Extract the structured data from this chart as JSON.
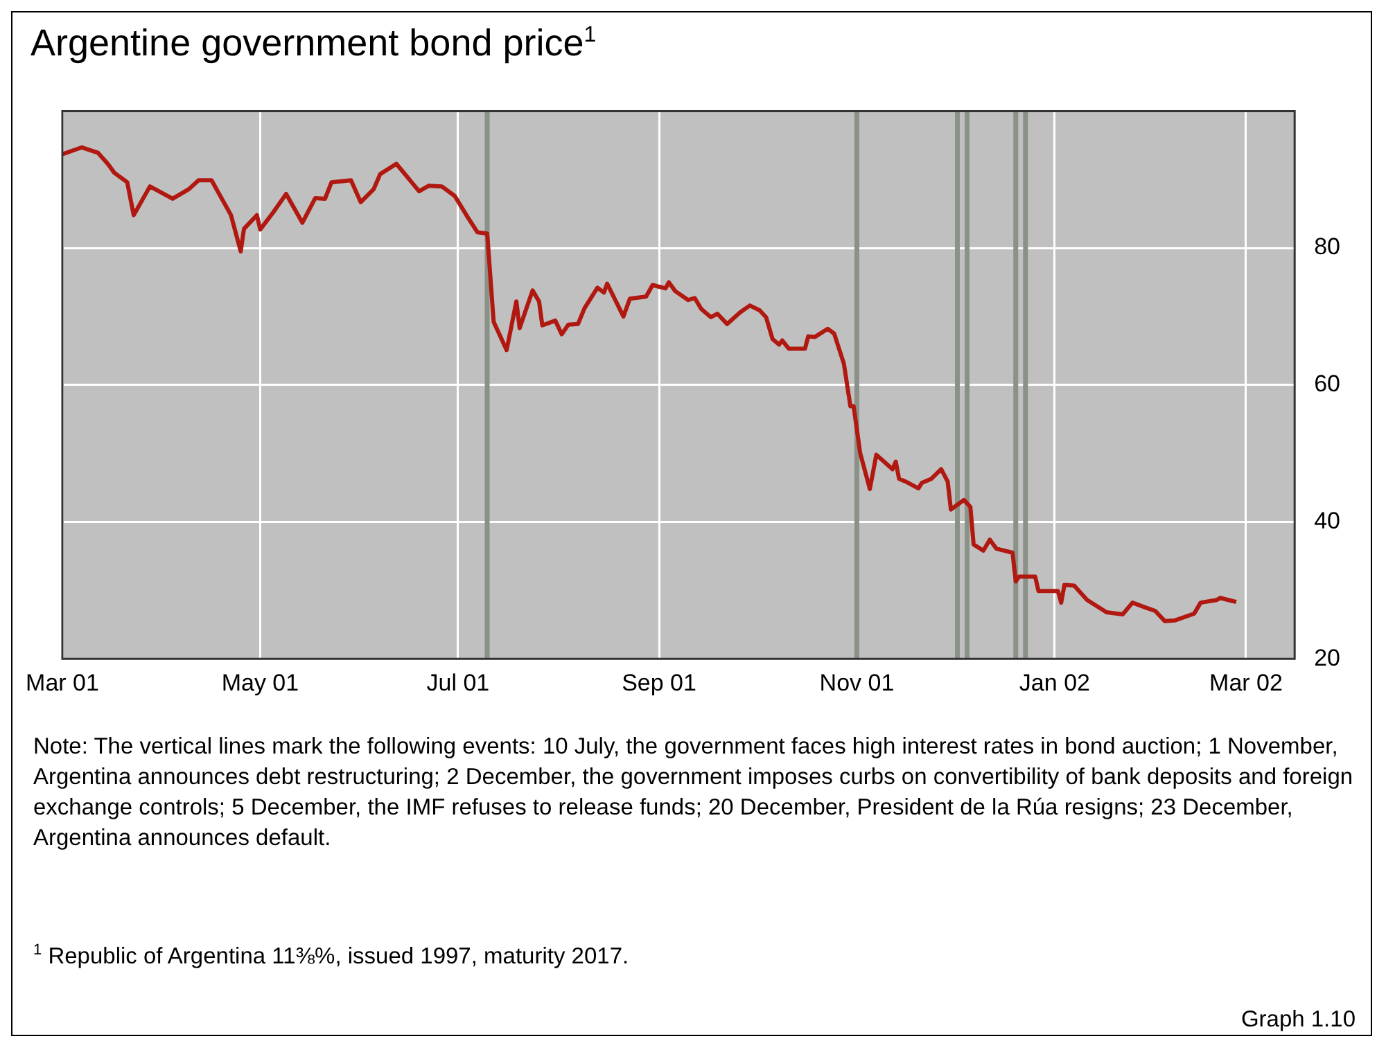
{
  "chart_data": {
    "type": "line",
    "title": "Argentine government bond price$^{1}$",
    "x": [
      "2001-03-01",
      "2001-03-07",
      "2001-03-12",
      "2001-03-15",
      "2001-03-17",
      "2001-03-21",
      "2001-03-23",
      "2001-03-28",
      "2001-04-04",
      "2001-04-09",
      "2001-04-12",
      "2001-04-16",
      "2001-04-22",
      "2001-04-25",
      "2001-04-26",
      "2001-04-30",
      "2001-05-01",
      "2001-05-05",
      "2001-05-09",
      "2001-05-14",
      "2001-05-18",
      "2001-05-21",
      "2001-05-23",
      "2001-05-29",
      "2001-06-01",
      "2001-06-05",
      "2001-06-07",
      "2001-06-12",
      "2001-06-19",
      "2001-06-22",
      "2001-06-26",
      "2001-06-30",
      "2001-07-04",
      "2001-07-07",
      "2001-07-10",
      "2001-07-12",
      "2001-07-16",
      "2001-07-19",
      "2001-07-20",
      "2001-07-24",
      "2001-07-26",
      "2001-07-27",
      "2001-07-31",
      "2001-08-02",
      "2001-08-04",
      "2001-08-07",
      "2001-08-09",
      "2001-08-13",
      "2001-08-15",
      "2001-08-16",
      "2001-08-21",
      "2001-08-23",
      "2001-08-28",
      "2001-08-30",
      "2001-09-03",
      "2001-09-04",
      "2001-09-06",
      "2001-09-10",
      "2001-09-12",
      "2001-09-14",
      "2001-09-17",
      "2001-09-19",
      "2001-09-22",
      "2001-09-26",
      "2001-09-29",
      "2001-10-02",
      "2001-10-04",
      "2001-10-06",
      "2001-10-08",
      "2001-10-09",
      "2001-10-11",
      "2001-10-16",
      "2001-10-17",
      "2001-10-19",
      "2001-10-23",
      "2001-10-25",
      "2001-10-28",
      "2001-10-30",
      "2001-10-31",
      "2001-11-02",
      "2001-11-05",
      "2001-11-07",
      "2001-11-12",
      "2001-11-13",
      "2001-11-14",
      "2001-11-16",
      "2001-11-20",
      "2001-11-21",
      "2001-11-24",
      "2001-11-27",
      "2001-11-29",
      "2001-11-30",
      "2001-12-04",
      "2001-12-06",
      "2001-12-07",
      "2001-12-10",
      "2001-12-12",
      "2001-12-14",
      "2001-12-19",
      "2001-12-20",
      "2001-12-21",
      "2001-12-26",
      "2001-12-27",
      "2002-01-02",
      "2002-01-03",
      "2002-01-04",
      "2002-01-07",
      "2002-01-11",
      "2002-01-17",
      "2002-01-22",
      "2002-01-25",
      "2002-01-29",
      "2002-02-01",
      "2002-02-04",
      "2002-02-07",
      "2002-02-13",
      "2002-02-15",
      "2002-02-20",
      "2002-02-21",
      "2002-02-26"
    ],
    "series": [
      {
        "color": "#b01810",
        "values": [
          93.7,
          94.7,
          93.9,
          92.3,
          91,
          89.6,
          84.8,
          89,
          87.2,
          88.6,
          89.9,
          89.9,
          84.8,
          79.5,
          82.8,
          84.8,
          82.7,
          85.2,
          87.9,
          83.7,
          87.3,
          87.2,
          89.6,
          89.9,
          86.7,
          88.6,
          90.8,
          92.3,
          88.3,
          89.1,
          89,
          87.6,
          84.5,
          82.3,
          82.1,
          69.2,
          65.1,
          72.2,
          68.3,
          73.8,
          72.2,
          68.7,
          69.4,
          67.4,
          68.8,
          68.9,
          71.2,
          74.2,
          73.5,
          74.8,
          70,
          72.6,
          72.9,
          74.6,
          74.1,
          75,
          73.7,
          72.4,
          72.7,
          71.1,
          69.9,
          70.4,
          68.9,
          70.6,
          71.6,
          70.9,
          69.9,
          66.7,
          65.9,
          66.5,
          65.3,
          65.3,
          67.1,
          67,
          68.2,
          67.5,
          63.1,
          56.9,
          56.9,
          50.1,
          44.8,
          49.8,
          47.7,
          48.8,
          46.3,
          45.9,
          44.9,
          45.7,
          46.3,
          47.7,
          45.9,
          41.8,
          43.2,
          42.2,
          36.7,
          35.8,
          37.4,
          36.1,
          35.5,
          31.3,
          32,
          32,
          29.9,
          29.9,
          28.2,
          30.8,
          30.7,
          28.6,
          26.8,
          26.5,
          28.2,
          27.5,
          27,
          25.5,
          25.6,
          26.6,
          28.2,
          28.6,
          28.9,
          28.3
        ]
      }
    ],
    "xlim": [
      "2001-03-01",
      "2002-03-16"
    ],
    "xticks": [
      {
        "value": "2001-03-01",
        "label": "Mar 01"
      },
      {
        "value": "2001-05-01",
        "label": "May 01"
      },
      {
        "value": "2001-07-01",
        "label": "Jul 01"
      },
      {
        "value": "2001-09-01",
        "label": "Sep 01"
      },
      {
        "value": "2001-11-01",
        "label": "Nov 01"
      },
      {
        "value": "2002-01-01",
        "label": "Jan 02"
      },
      {
        "value": "2002-03-01",
        "label": "Mar 02"
      }
    ],
    "ylim": [
      20,
      100
    ],
    "yticks": [
      20,
      40,
      60,
      80
    ],
    "grid": true,
    "legend": false,
    "marker": "none",
    "line_style": "solid",
    "ref_lines": [
      {
        "axis": "x",
        "value": "2001-07-10",
        "color": "#8a9186"
      },
      {
        "axis": "x",
        "value": "2001-11-01",
        "color": "#8a9186"
      },
      {
        "axis": "x",
        "value": "2001-12-02",
        "color": "#8a9186"
      },
      {
        "axis": "x",
        "value": "2001-12-05",
        "color": "#8a9186"
      },
      {
        "axis": "x",
        "value": "2001-12-20",
        "color": "#8a9186"
      },
      {
        "axis": "x",
        "value": "2001-12-23",
        "color": "#8a9186"
      }
    ],
    "annotations": [
      "Note: The vertical lines mark the following events: 10 July, the government faces high interest rates in bond auction; 1 November, Argentina announces debt restructuring; 2 December, the government imposes curbs on convertibility of bank deposits and foreign exchange controls; 5 December, the IMF refuses to release funds; 20 December, President de la Rúa resigns; 23 December, Argentina announces default.",
      "$^{1}$  Republic of Argentina 11⅜%, issued 1997, maturity 2017.",
      "Graph 1.10"
    ]
  }
}
